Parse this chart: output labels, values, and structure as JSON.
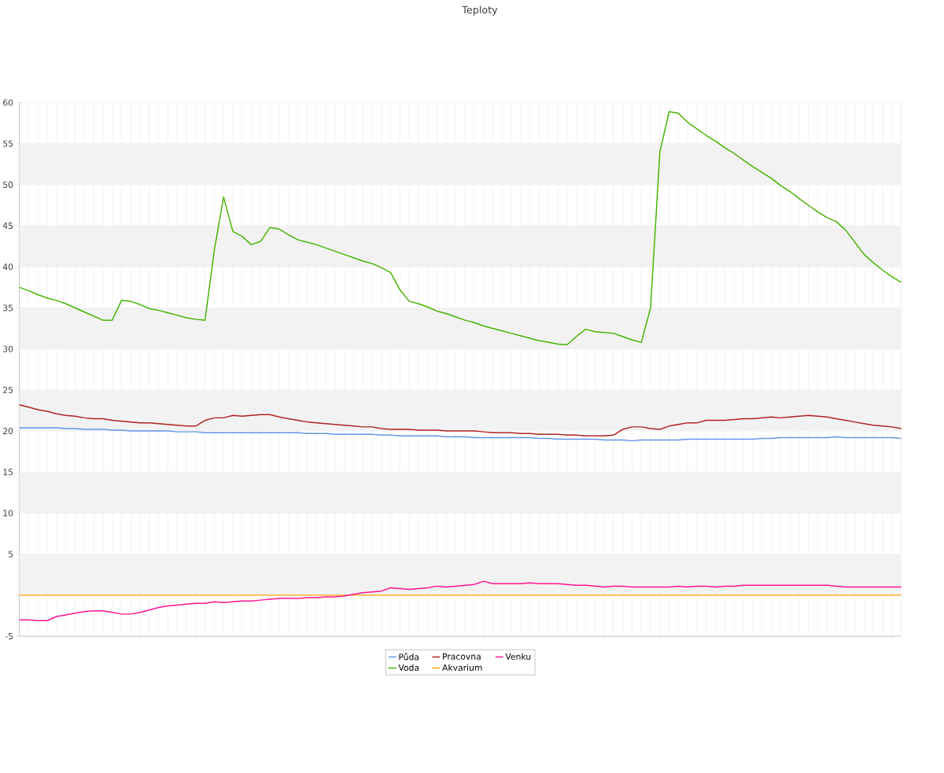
{
  "chart_data": {
    "type": "line",
    "title": "Teploty",
    "categories": [
      null,
      null,
      null,
      null,
      null,
      null,
      null,
      null,
      null,
      null,
      null,
      null,
      null,
      null,
      null,
      null,
      null,
      null,
      null,
      null,
      null,
      null,
      null,
      null,
      null,
      null,
      null,
      null,
      null,
      null,
      null,
      null,
      null,
      null,
      null,
      null,
      null,
      null,
      null,
      null,
      null,
      null,
      null,
      null,
      null,
      null,
      null,
      null,
      null,
      null,
      null,
      null,
      null,
      null,
      null,
      null,
      null,
      null,
      null,
      null,
      null,
      null,
      null,
      null,
      null,
      null,
      null,
      null,
      null,
      null,
      null,
      null,
      null,
      null,
      null,
      null,
      null,
      null,
      null,
      null,
      null,
      null,
      null,
      null,
      null,
      null,
      null,
      null,
      null,
      null,
      null,
      null,
      null,
      null,
      null,
      null
    ],
    "series": [
      {
        "name": "Půda",
        "color": "#6495ed",
        "values": [
          20.4,
          20.4,
          20.4,
          20.4,
          20.4,
          20.3,
          20.3,
          20.2,
          20.2,
          20.2,
          20.1,
          20.1,
          20.0,
          20.0,
          20.0,
          20.0,
          20.0,
          19.9,
          19.9,
          19.9,
          19.8,
          19.8,
          19.8,
          19.8,
          19.8,
          19.8,
          19.8,
          19.8,
          19.8,
          19.8,
          19.8,
          19.7,
          19.7,
          19.7,
          19.6,
          19.6,
          19.6,
          19.6,
          19.6,
          19.5,
          19.5,
          19.4,
          19.4,
          19.4,
          19.4,
          19.4,
          19.3,
          19.3,
          19.3,
          19.2,
          19.2,
          19.2,
          19.2,
          19.2,
          19.2,
          19.2,
          19.1,
          19.1,
          19.0,
          19.0,
          19.0,
          19.0,
          19.0,
          18.9,
          18.9,
          18.9,
          18.8,
          18.9,
          18.9,
          18.9,
          18.9,
          18.9,
          19.0,
          19.0,
          19.0,
          19.0,
          19.0,
          19.0,
          19.0,
          19.0,
          19.1,
          19.1,
          19.2,
          19.2,
          19.2,
          19.2,
          19.2,
          19.2,
          19.3,
          19.2,
          19.2,
          19.2,
          19.2,
          19.2,
          19.2,
          19.1
        ]
      },
      {
        "name": "Voda",
        "color": "#44b400",
        "values": [
          37.5,
          37.1,
          36.6,
          36.2,
          35.9,
          35.5,
          35.0,
          34.5,
          34.0,
          33.5,
          33.5,
          35.9,
          35.8,
          35.4,
          34.9,
          34.7,
          34.4,
          34.1,
          33.8,
          33.6,
          33.5,
          42,
          48.5,
          44.3,
          43.7,
          42.7,
          43.1,
          44.8,
          44.6,
          43.9,
          43.3,
          43.0,
          42.7,
          42.3,
          41.9,
          41.5,
          41.1,
          40.7,
          40.4,
          39.9,
          39.3,
          37.2,
          35.8,
          35.5,
          35.1,
          34.6,
          34.3,
          33.9,
          33.5,
          33.2,
          32.8,
          32.5,
          32.2,
          31.9,
          31.6,
          31.3,
          31.0,
          30.8,
          30.6,
          30.5,
          31.5,
          32.4,
          32.1,
          32.0,
          31.9,
          31.5,
          31.1,
          30.8,
          35,
          54,
          58.9,
          58.7,
          57.6,
          56.8,
          56,
          55.3,
          54.5,
          53.8,
          53.0,
          52.2,
          51.5,
          50.8,
          49.9,
          49.2,
          48.3,
          47.5,
          46.7,
          46.0,
          45.5,
          44.5,
          43.0,
          41.5,
          40.5,
          39.6,
          38.8,
          38.1
        ]
      },
      {
        "name": "Pracovna",
        "color": "#b22222",
        "values": [
          23.2,
          22.9,
          22.6,
          22.4,
          22.1,
          21.9,
          21.8,
          21.6,
          21.5,
          21.5,
          21.3,
          21.2,
          21.1,
          21.0,
          21.0,
          20.9,
          20.8,
          20.7,
          20.6,
          20.6,
          21.3,
          21.6,
          21.6,
          21.9,
          21.8,
          21.9,
          22.0,
          22.0,
          21.7,
          21.5,
          21.3,
          21.1,
          21.0,
          20.9,
          20.8,
          20.7,
          20.6,
          20.5,
          20.5,
          20.3,
          20.2,
          20.2,
          20.2,
          20.1,
          20.1,
          20.1,
          20.0,
          20.0,
          20.0,
          20.0,
          19.9,
          19.8,
          19.8,
          19.8,
          19.7,
          19.7,
          19.6,
          19.6,
          19.6,
          19.5,
          19.5,
          19.4,
          19.4,
          19.4,
          19.5,
          20.2,
          20.5,
          20.5,
          20.3,
          20.2,
          20.6,
          20.8,
          21.0,
          21.0,
          21.3,
          21.3,
          21.3,
          21.4,
          21.5,
          21.5,
          21.6,
          21.7,
          21.6,
          21.7,
          21.8,
          21.9,
          21.8,
          21.7,
          21.5,
          21.3,
          21.1,
          20.9,
          20.7,
          20.6,
          20.5,
          20.3
        ]
      },
      {
        "name": "Akvarium",
        "color": "#ffa500",
        "values": [
          0,
          0,
          0,
          0,
          0,
          0,
          0,
          0,
          0,
          0,
          0,
          0,
          0,
          0,
          0,
          0,
          0,
          0,
          0,
          0,
          0,
          0,
          0,
          0,
          0,
          0,
          0,
          0,
          0,
          0,
          0,
          0,
          0,
          0,
          0,
          0,
          0,
          0,
          0,
          0,
          0,
          0,
          0,
          0,
          0,
          0,
          0,
          0,
          0,
          0,
          0,
          0,
          0,
          0,
          0,
          0,
          0,
          0,
          0,
          0,
          0,
          0,
          0,
          0,
          0,
          0,
          0,
          0,
          0,
          0,
          0,
          0,
          0,
          0,
          0,
          0,
          0,
          0,
          0,
          0,
          0,
          0,
          0,
          0,
          0,
          0,
          0,
          0,
          0,
          0,
          0,
          0,
          0,
          0,
          0,
          0
        ]
      },
      {
        "name": "Venku",
        "color": "#ff1493",
        "values": [
          -3.0,
          -3.0,
          -3.1,
          -3.1,
          -2.6,
          -2.4,
          -2.2,
          -2.0,
          -1.9,
          -1.9,
          -2.1,
          -2.3,
          -2.3,
          -2.1,
          -1.8,
          -1.5,
          -1.3,
          -1.2,
          -1.1,
          -1.0,
          -1.0,
          -0.8,
          -0.9,
          -0.8,
          -0.7,
          -0.7,
          -0.6,
          -0.5,
          -0.4,
          -0.4,
          -0.4,
          -0.3,
          -0.3,
          -0.2,
          -0.2,
          -0.1,
          0.1,
          0.3,
          0.4,
          0.5,
          0.9,
          0.8,
          0.7,
          0.8,
          0.9,
          1.1,
          1.0,
          1.1,
          1.2,
          1.3,
          1.7,
          1.4,
          1.4,
          1.4,
          1.4,
          1.5,
          1.4,
          1.4,
          1.4,
          1.3,
          1.2,
          1.2,
          1.1,
          1.0,
          1.1,
          1.1,
          1.0,
          1.0,
          1.0,
          1.0,
          1.0,
          1.1,
          1.0,
          1.1,
          1.1,
          1.0,
          1.1,
          1.1,
          1.2,
          1.2,
          1.2,
          1.2,
          1.2,
          1.2,
          1.2,
          1.2,
          1.2,
          1.2,
          1.1,
          1.0,
          1.0,
          1.0,
          1.0,
          1.0,
          1.0,
          1.0
        ]
      }
    ],
    "ylim": [
      -5,
      60
    ],
    "yticks": [
      -5,
      {
        "value": 0,
        "label": null
      },
      5,
      10,
      15,
      20,
      25,
      30,
      35,
      40,
      45,
      50,
      55,
      60
    ],
    "bands": [
      {
        "axis": "y",
        "from": 0,
        "to": 5,
        "color": "#f2f2f2"
      },
      {
        "axis": "y",
        "from": 10,
        "to": 15,
        "color": "#f2f2f2"
      },
      {
        "axis": "y",
        "from": 20,
        "to": 25,
        "color": "#f2f2f2"
      },
      {
        "axis": "y",
        "from": 30,
        "to": 35,
        "color": "#f2f2f2"
      },
      {
        "axis": "y",
        "from": 40,
        "to": 45,
        "color": "#f2f2f2"
      },
      {
        "axis": "y",
        "from": 50,
        "to": 55,
        "color": "#f2f2f2"
      }
    ],
    "grid": true,
    "legend": "bottom",
    "marker": "none",
    "line_style": "solid"
  }
}
